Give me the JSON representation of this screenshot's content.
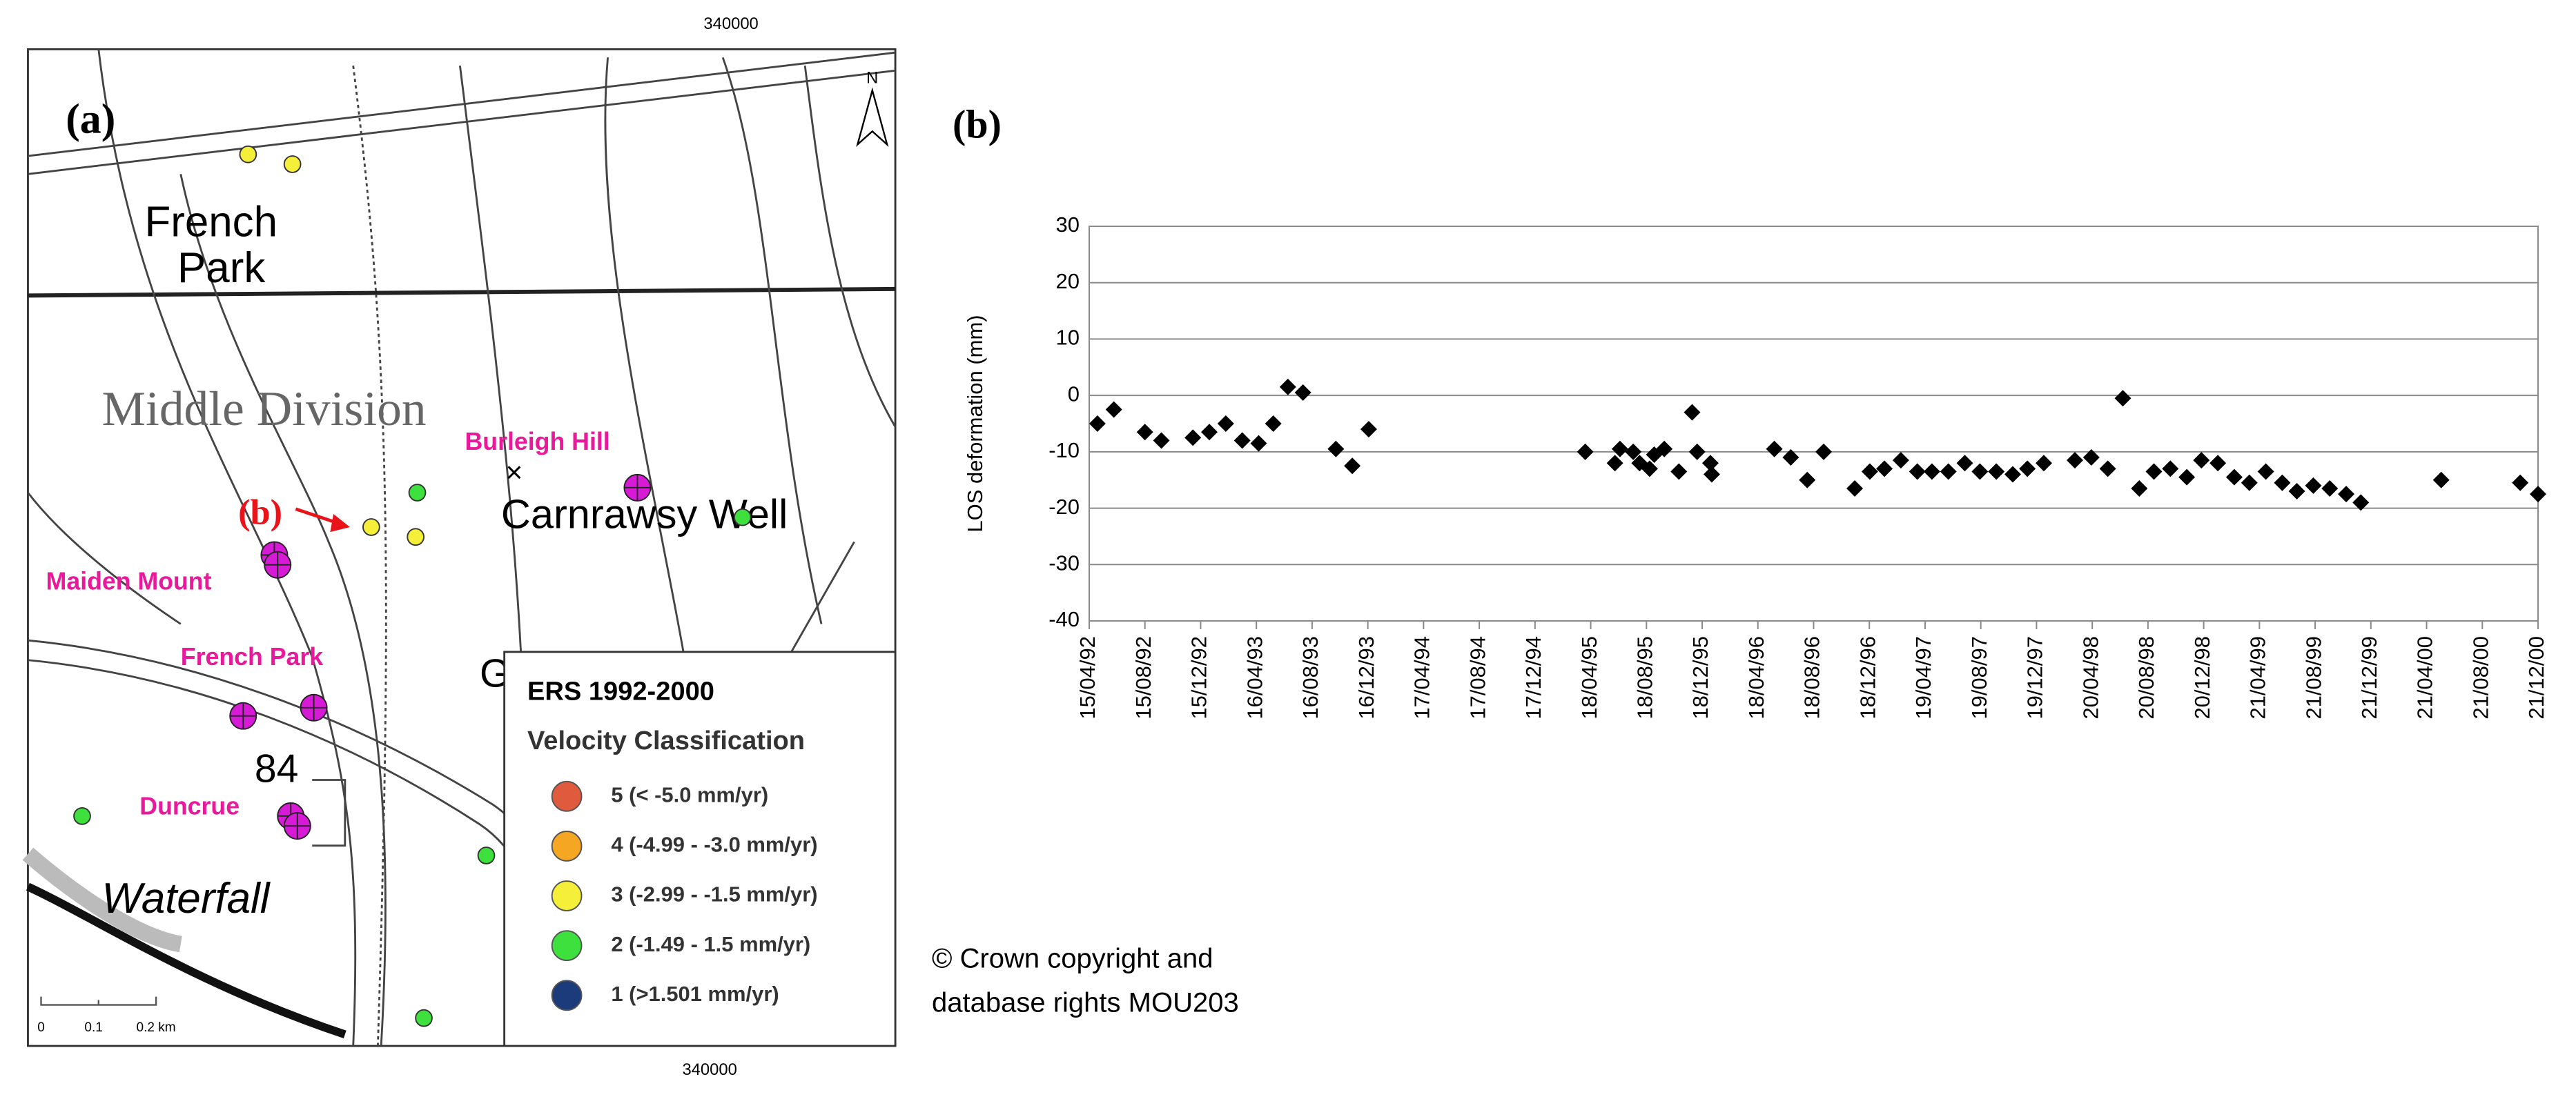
{
  "map": {
    "panel_label": "(a)",
    "easting_top": "340000",
    "easting_bottom": "340000",
    "north": "N",
    "place_french_park": [
      "French",
      "Park"
    ],
    "place_middle_division": "Middle Division",
    "site_burleigh_hill": "Burleigh Hill",
    "place_carnrawsy_well": "Carnrawsy Well",
    "pointer_label": "(b)",
    "site_maiden_mount": "Maiden Mount",
    "site_french_park": "French Park",
    "spot_height": "84",
    "site_duncrue": "Duncrue",
    "place_waterfall": "Waterfall",
    "place_fragment": "G",
    "scale_labels": [
      "0",
      "0.1",
      "0.2 km"
    ],
    "legend": {
      "title": "ERS 1992-2000",
      "subtitle": "Velocity Classification",
      "entries": [
        {
          "label": "5 (< -5.0 mm/yr)",
          "color": "#e05a3e"
        },
        {
          "label": "4 (-4.99 - -3.0 mm/yr)",
          "color": "#f5a623"
        },
        {
          "label": "3 (-2.99 - -1.5 mm/yr)",
          "color": "#f6ef3a"
        },
        {
          "label": "2 (-1.49 - 1.5 mm/yr)",
          "color": "#3de03d"
        },
        {
          "label": "1 (>1.501 mm/yr)",
          "color": "#1c3b7a"
        }
      ]
    }
  },
  "copyright": [
    "© Crown copyright and",
    "database rights MOU203"
  ],
  "chart_data": {
    "type": "scatter",
    "panel_label": "(b)",
    "y_label": "LOS deformation (mm)",
    "color": "#000000",
    "grid": true,
    "ylim": [
      -40,
      30
    ],
    "yticks": [
      -40,
      -30,
      -20,
      -10,
      0,
      10,
      20,
      30
    ],
    "xlim": [
      "1992-04-15",
      "2000-12-21"
    ],
    "xticks": [
      {
        "value": "1992-04-15",
        "label": "15/04/92"
      },
      {
        "value": "1992-08-15",
        "label": "15/08/92"
      },
      {
        "value": "1992-12-15",
        "label": "15/12/92"
      },
      {
        "value": "1993-04-16",
        "label": "16/04/93"
      },
      {
        "value": "1993-08-16",
        "label": "16/08/93"
      },
      {
        "value": "1993-12-16",
        "label": "16/12/93"
      },
      {
        "value": "1994-04-17",
        "label": "17/04/94"
      },
      {
        "value": "1994-08-17",
        "label": "17/08/94"
      },
      {
        "value": "1994-12-17",
        "label": "17/12/94"
      },
      {
        "value": "1995-04-18",
        "label": "18/04/95"
      },
      {
        "value": "1995-08-18",
        "label": "18/08/95"
      },
      {
        "value": "1995-12-18",
        "label": "18/12/95"
      },
      {
        "value": "1996-04-18",
        "label": "18/04/96"
      },
      {
        "value": "1996-08-18",
        "label": "18/08/96"
      },
      {
        "value": "1996-12-18",
        "label": "18/12/96"
      },
      {
        "value": "1997-04-19",
        "label": "19/04/97"
      },
      {
        "value": "1997-08-19",
        "label": "19/08/97"
      },
      {
        "value": "1997-12-19",
        "label": "19/12/97"
      },
      {
        "value": "1998-04-20",
        "label": "20/04/98"
      },
      {
        "value": "1998-08-20",
        "label": "20/08/98"
      },
      {
        "value": "1998-12-20",
        "label": "20/12/98"
      },
      {
        "value": "1999-04-21",
        "label": "21/04/99"
      },
      {
        "value": "1999-08-21",
        "label": "21/08/99"
      },
      {
        "value": "1999-12-21",
        "label": "21/12/99"
      },
      {
        "value": "2000-04-21",
        "label": "21/04/00"
      },
      {
        "value": "2000-08-21",
        "label": "21/08/00"
      },
      {
        "value": "2000-12-21",
        "label": "21/12/00"
      }
    ],
    "x": [
      "1992-05-03",
      "1992-06-08",
      "1992-08-15",
      "1992-09-20",
      "1992-11-28",
      "1993-01-03",
      "1993-02-08",
      "1993-03-16",
      "1993-04-21",
      "1993-05-23",
      "1993-06-24",
      "1993-07-27",
      "1993-10-07",
      "1993-11-12",
      "1993-12-18",
      "1995-04-06",
      "1995-06-10",
      "1995-06-21",
      "1995-07-20",
      "1995-08-03",
      "1995-08-25",
      "1995-09-04",
      "1995-09-26",
      "1995-10-28",
      "1995-11-26",
      "1995-12-07",
      "1996-01-05",
      "1996-01-08",
      "1996-05-24",
      "1996-06-29",
      "1996-08-04",
      "1996-09-09",
      "1996-11-16",
      "1996-12-19",
      "1997-01-20",
      "1997-02-25",
      "1997-04-02",
      "1997-05-04",
      "1997-06-09",
      "1997-07-15",
      "1997-08-17",
      "1997-09-22",
      "1997-10-28",
      "1997-11-29",
      "1998-01-04",
      "1998-03-13",
      "1998-04-18",
      "1998-05-24",
      "1998-06-26",
      "1998-08-01",
      "1998-09-02",
      "1998-10-08",
      "1998-11-13",
      "1998-12-15",
      "1999-01-20",
      "1999-02-25",
      "1999-03-30",
      "1999-05-05",
      "1999-06-10",
      "1999-07-12",
      "1999-08-17",
      "1999-09-22",
      "1999-10-28",
      "1999-11-29",
      "2000-05-23",
      "2000-11-12",
      "2000-12-21"
    ],
    "values": [
      -5,
      -2.5,
      -6.5,
      -8,
      -7.5,
      -6.5,
      -5,
      -8,
      -8.5,
      -5,
      1.5,
      0.5,
      -9.5,
      -12.5,
      -6,
      -10,
      -12,
      -9.5,
      -10,
      -12,
      -13,
      -10.5,
      -9.5,
      -13.5,
      -3,
      -10,
      -12,
      -14,
      -9.5,
      -11,
      -15,
      -10,
      -16.5,
      -13.5,
      -13,
      -11.5,
      -13.5,
      -13.5,
      -13.5,
      -12,
      -13.5,
      -13.5,
      -14,
      -13,
      -12,
      -11.5,
      -11,
      -13,
      -0.5,
      -16.5,
      -13.5,
      -13,
      -14.5,
      -11.5,
      -12,
      -14.5,
      -15.5,
      -13.5,
      -15.5,
      -17,
      -16,
      -16.5,
      -17.5,
      -19,
      -15,
      -15.5,
      -17.5
    ]
  }
}
